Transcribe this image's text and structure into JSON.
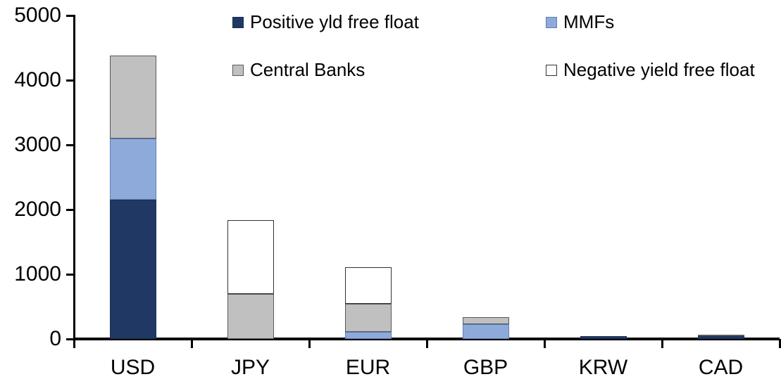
{
  "chart_data": {
    "type": "bar",
    "stacked": true,
    "title": "",
    "xlabel": "",
    "ylabel": "",
    "categories": [
      "USD",
      "JPY",
      "EUR",
      "GBP",
      "KRW",
      "CAD"
    ],
    "series": [
      {
        "name": "Positive yld free float",
        "color": "#1F3864",
        "border": "#1A2E50",
        "values": [
          2150,
          0,
          0,
          0,
          40,
          40
        ]
      },
      {
        "name": "MMFs",
        "color": "#8EAADB",
        "border": "#5B7DB5",
        "values": [
          950,
          0,
          110,
          230,
          0,
          0
        ]
      },
      {
        "name": "Central Banks",
        "color": "#C0C0C0",
        "border": "#595959",
        "values": [
          1280,
          700,
          435,
          105,
          0,
          25
        ]
      },
      {
        "name": "Negative yield free float",
        "color": "#FFFFFF",
        "border": "#333333",
        "values": [
          0,
          1140,
          565,
          0,
          0,
          0
        ]
      }
    ],
    "ylim": [
      0,
      5000
    ],
    "yticks": [
      0,
      1000,
      2000,
      3000,
      4000,
      5000
    ],
    "grid": false,
    "legend_position": "top",
    "totals_by_category": [
      4380,
      1840,
      1110,
      335,
      40,
      65
    ]
  },
  "colors": {
    "axis": "#000000",
    "background": "#ffffff",
    "text": "#000000"
  }
}
